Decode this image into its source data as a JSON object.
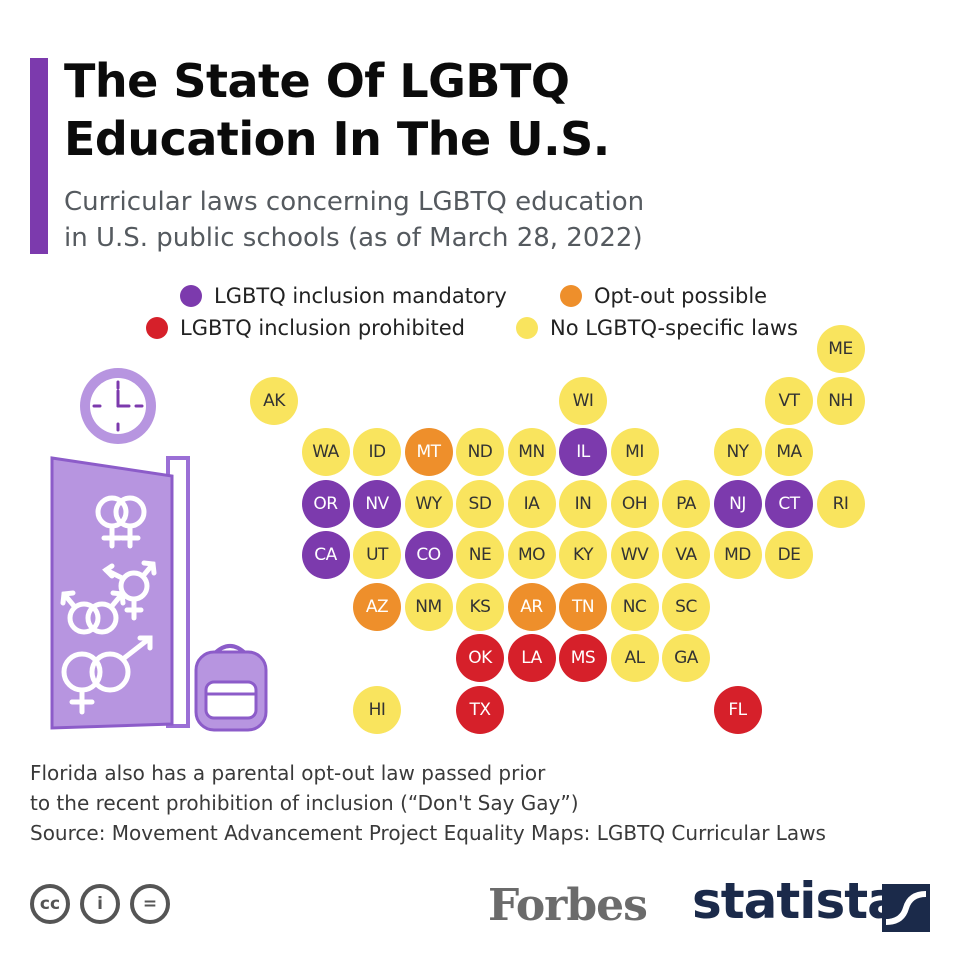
{
  "header": {
    "title_line1": "The State Of LGBTQ",
    "title_line2": "Education In The U.S.",
    "subtitle": "Curricular laws concerning LGBTQ education\nin U.S. public schools (as of March 28, 2022)"
  },
  "colors": {
    "accent": "#7c3aad",
    "mandatory": "#7c3aad",
    "optout": "#ee8f2b",
    "prohibited": "#d6202a",
    "none": "#f9e45e",
    "text_on_dark": "#ffffff",
    "text_on_light": "#333333"
  },
  "legend": [
    {
      "key": "mandatory",
      "label": "LGBTQ inclusion mandatory"
    },
    {
      "key": "optout",
      "label": "Opt-out possible"
    },
    {
      "key": "prohibited",
      "label": "LGBTQ inclusion prohibited"
    },
    {
      "key": "none",
      "label": "No LGBTQ-specific laws"
    }
  ],
  "map": {
    "states": [
      {
        "abbr": "ME",
        "row": 0,
        "col": 11,
        "status": "none"
      },
      {
        "abbr": "AK",
        "row": 1,
        "col": 0,
        "status": "none"
      },
      {
        "abbr": "WI",
        "row": 1,
        "col": 6,
        "status": "none"
      },
      {
        "abbr": "VT",
        "row": 1,
        "col": 10,
        "status": "none"
      },
      {
        "abbr": "NH",
        "row": 1,
        "col": 11,
        "status": "none"
      },
      {
        "abbr": "WA",
        "row": 2,
        "col": 1,
        "status": "none"
      },
      {
        "abbr": "ID",
        "row": 2,
        "col": 2,
        "status": "none"
      },
      {
        "abbr": "MT",
        "row": 2,
        "col": 3,
        "status": "optout"
      },
      {
        "abbr": "ND",
        "row": 2,
        "col": 4,
        "status": "none"
      },
      {
        "abbr": "MN",
        "row": 2,
        "col": 5,
        "status": "none"
      },
      {
        "abbr": "IL",
        "row": 2,
        "col": 6,
        "status": "mandatory"
      },
      {
        "abbr": "MI",
        "row": 2,
        "col": 7,
        "status": "none"
      },
      {
        "abbr": "NY",
        "row": 2,
        "col": 9,
        "status": "none"
      },
      {
        "abbr": "MA",
        "row": 2,
        "col": 10,
        "status": "none"
      },
      {
        "abbr": "OR",
        "row": 3,
        "col": 1,
        "status": "mandatory"
      },
      {
        "abbr": "NV",
        "row": 3,
        "col": 2,
        "status": "mandatory"
      },
      {
        "abbr": "WY",
        "row": 3,
        "col": 3,
        "status": "none"
      },
      {
        "abbr": "SD",
        "row": 3,
        "col": 4,
        "status": "none"
      },
      {
        "abbr": "IA",
        "row": 3,
        "col": 5,
        "status": "none"
      },
      {
        "abbr": "IN",
        "row": 3,
        "col": 6,
        "status": "none"
      },
      {
        "abbr": "OH",
        "row": 3,
        "col": 7,
        "status": "none"
      },
      {
        "abbr": "PA",
        "row": 3,
        "col": 8,
        "status": "none"
      },
      {
        "abbr": "NJ",
        "row": 3,
        "col": 9,
        "status": "mandatory"
      },
      {
        "abbr": "CT",
        "row": 3,
        "col": 10,
        "status": "mandatory"
      },
      {
        "abbr": "RI",
        "row": 3,
        "col": 11,
        "status": "none"
      },
      {
        "abbr": "CA",
        "row": 4,
        "col": 1,
        "status": "mandatory"
      },
      {
        "abbr": "UT",
        "row": 4,
        "col": 2,
        "status": "none"
      },
      {
        "abbr": "CO",
        "row": 4,
        "col": 3,
        "status": "mandatory"
      },
      {
        "abbr": "NE",
        "row": 4,
        "col": 4,
        "status": "none"
      },
      {
        "abbr": "MO",
        "row": 4,
        "col": 5,
        "status": "none"
      },
      {
        "abbr": "KY",
        "row": 4,
        "col": 6,
        "status": "none"
      },
      {
        "abbr": "WV",
        "row": 4,
        "col": 7,
        "status": "none"
      },
      {
        "abbr": "VA",
        "row": 4,
        "col": 8,
        "status": "none"
      },
      {
        "abbr": "MD",
        "row": 4,
        "col": 9,
        "status": "none"
      },
      {
        "abbr": "DE",
        "row": 4,
        "col": 10,
        "status": "none"
      },
      {
        "abbr": "AZ",
        "row": 5,
        "col": 2,
        "status": "optout"
      },
      {
        "abbr": "NM",
        "row": 5,
        "col": 3,
        "status": "none"
      },
      {
        "abbr": "KS",
        "row": 5,
        "col": 4,
        "status": "none"
      },
      {
        "abbr": "AR",
        "row": 5,
        "col": 5,
        "status": "optout"
      },
      {
        "abbr": "TN",
        "row": 5,
        "col": 6,
        "status": "optout"
      },
      {
        "abbr": "NC",
        "row": 5,
        "col": 7,
        "status": "none"
      },
      {
        "abbr": "SC",
        "row": 5,
        "col": 8,
        "status": "none"
      },
      {
        "abbr": "OK",
        "row": 6,
        "col": 4,
        "status": "prohibited"
      },
      {
        "abbr": "LA",
        "row": 6,
        "col": 5,
        "status": "prohibited"
      },
      {
        "abbr": "MS",
        "row": 6,
        "col": 6,
        "status": "prohibited"
      },
      {
        "abbr": "AL",
        "row": 6,
        "col": 7,
        "status": "none"
      },
      {
        "abbr": "GA",
        "row": 6,
        "col": 8,
        "status": "none"
      },
      {
        "abbr": "HI",
        "row": 7,
        "col": 2,
        "status": "none"
      },
      {
        "abbr": "TX",
        "row": 7,
        "col": 4,
        "status": "prohibited"
      },
      {
        "abbr": "FL",
        "row": 7,
        "col": 9,
        "status": "prohibited"
      }
    ]
  },
  "footer": {
    "note_line1": "Florida also has a parental opt-out law passed prior",
    "note_line2": "to the recent prohibition of inclusion (“Don't Say Gay”)",
    "source": "Source: Movement Advancement Project Equality Maps: LGBTQ Curricular Laws",
    "cc_label": "cc",
    "cc_by_label": "i",
    "cc_nd_label": "=",
    "forbes": "Forbes",
    "statista": "statista"
  }
}
